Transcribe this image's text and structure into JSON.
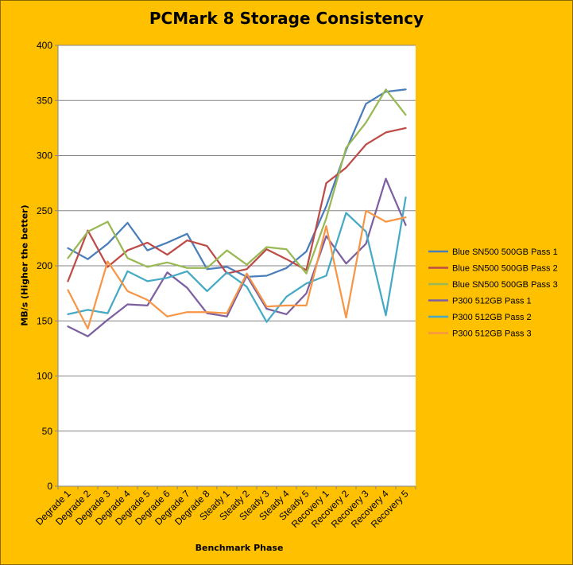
{
  "chart_data": {
    "type": "line",
    "title": "PCMark 8 Storage Consistency",
    "xlabel": "Benchmark Phase",
    "ylabel": "MB/s (Higher the better)",
    "ylim": [
      0,
      400
    ],
    "yticks": [
      0,
      50,
      100,
      150,
      200,
      250,
      300,
      350,
      400
    ],
    "grid": true,
    "legend_position": "right",
    "categories": [
      "Degrade 1",
      "Degrade 2",
      "Degrade 3",
      "Degrade 4",
      "Degrade 5",
      "Degrade 6",
      "Degrade 7",
      "Degrade 8",
      "Steady 1",
      "Steady 2",
      "Steady 3",
      "Steady 4",
      "Steady 5",
      "Recovery 1",
      "Recovery 2",
      "Recovery 3",
      "Recovery 4",
      "Recovery 5"
    ],
    "series": [
      {
        "name": "Blue SN500 500GB Pass 1",
        "color": "#4a7ebb",
        "values": [
          216,
          206,
          220,
          239,
          214,
          221,
          229,
          197,
          199,
          190,
          191,
          198,
          213,
          254,
          305,
          347,
          358,
          360
        ]
      },
      {
        "name": "Blue SN500 500GB Pass 2",
        "color": "#be4b48",
        "values": [
          186,
          232,
          199,
          214,
          221,
          210,
          223,
          218,
          193,
          197,
          215,
          206,
          196,
          275,
          289,
          310,
          321,
          325
        ]
      },
      {
        "name": "Blue SN500 500GB Pass 3",
        "color": "#98b954",
        "values": [
          207,
          231,
          240,
          207,
          199,
          203,
          198,
          198,
          214,
          201,
          217,
          215,
          193,
          243,
          307,
          330,
          360,
          337
        ]
      },
      {
        "name": "P300 512GB Pass 1",
        "color": "#7d60a0",
        "values": [
          145,
          136,
          151,
          165,
          164,
          194,
          180,
          157,
          154,
          191,
          161,
          156,
          175,
          227,
          202,
          220,
          279,
          237
        ]
      },
      {
        "name": "P300 512GB Pass 2",
        "color": "#46aac5",
        "values": [
          156,
          160,
          157,
          195,
          186,
          189,
          195,
          177,
          194,
          181,
          149,
          172,
          184,
          191,
          248,
          231,
          155,
          262
        ]
      },
      {
        "name": "P300 512GB Pass 3",
        "color": "#f79646",
        "values": [
          178,
          143,
          204,
          177,
          169,
          154,
          158,
          158,
          157,
          193,
          163,
          164,
          164,
          236,
          153,
          250,
          240,
          244
        ]
      }
    ]
  }
}
